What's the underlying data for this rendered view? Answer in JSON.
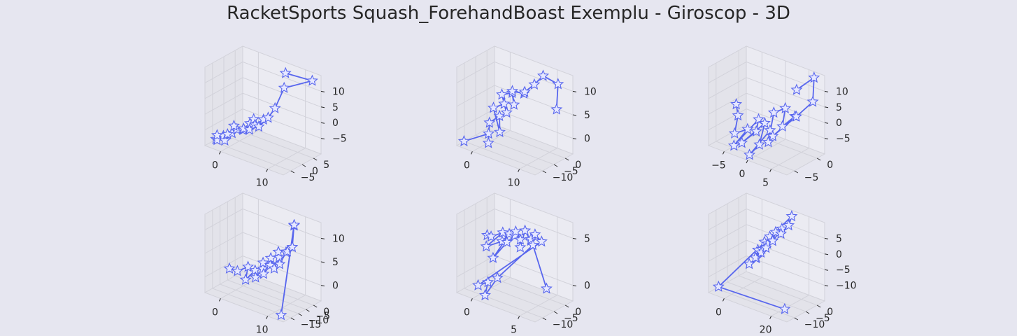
{
  "figure": {
    "title": "RacketSports Squash_ForehandBoast Exemplu - Giroscop - 3D"
  },
  "colors": {
    "background": "#e6e6f0",
    "pane_face": "#ebebf2",
    "pane_side": "#e3e3ea",
    "grid": "#d2d2da",
    "line": "#5866ee",
    "marker_fill": "#e6e8ff",
    "text": "#262626"
  },
  "chart_data": [
    {
      "type": "line3d",
      "marker": "star",
      "xticks": [
        "0",
        "10"
      ],
      "yticks": [
        "−5",
        "0",
        "5"
      ],
      "zticks": [
        "−5",
        "0",
        "5",
        "10"
      ],
      "x": [
        0.3,
        0.9,
        1.4,
        1.2,
        2.1,
        2.7,
        3.2,
        3.9,
        4.4,
        3.8,
        4.9,
        5.5,
        6.1,
        5.7,
        6.6,
        7.2,
        6.9,
        7.8,
        8.4,
        9.1,
        12.7,
        7.5
      ],
      "y": [
        -1.5,
        -2.0,
        -1.2,
        -2.4,
        -1.8,
        -0.9,
        -2.6,
        -1.4,
        -0.6,
        -1.9,
        -1.1,
        -0.4,
        -1.3,
        0.2,
        -0.7,
        0.5,
        -0.2,
        0.8,
        1.6,
        2.8,
        4.6,
        5.2
      ],
      "z": [
        -6.2,
        -5.8,
        -5.0,
        -4.2,
        -5.4,
        -3.8,
        -2.8,
        -1.9,
        -2.3,
        -0.8,
        -1.4,
        -0.2,
        -0.9,
        0.6,
        0.2,
        1.1,
        -0.4,
        1.7,
        3.9,
        8.6,
        11.2,
        10.0
      ]
    },
    {
      "type": "line3d",
      "marker": "star",
      "xticks": [
        "0",
        "10"
      ],
      "yticks": [
        "−10",
        "−5",
        "0"
      ],
      "zticks": [
        "0",
        "5",
        "10"
      ],
      "x": [
        0.0,
        4.2,
        5.3,
        3.6,
        4.9,
        6.1,
        3.2,
        5.0,
        6.6,
        4.1,
        5.6,
        7.2,
        6.0,
        7.4,
        8.3,
        9.0,
        10.2,
        14.6,
        12.5
      ],
      "y": [
        -6.5,
        -5.2,
        -6.8,
        -4.1,
        -3.0,
        -4.6,
        -2.4,
        -1.8,
        -3.3,
        -1.2,
        -0.3,
        -2.0,
        -0.8,
        0.6,
        -0.4,
        1.4,
        2.3,
        0.5,
        3.0
      ],
      "z": [
        -2.5,
        0.4,
        -0.6,
        2.2,
        3.8,
        1.3,
        4.7,
        6.1,
        5.4,
        7.6,
        8.2,
        6.9,
        9.0,
        8.4,
        9.6,
        10.8,
        12.9,
        13.6,
        5.8
      ]
    },
    {
      "type": "line3d",
      "marker": "star",
      "xticks": [
        "−5",
        "0",
        "5"
      ],
      "yticks": [
        "−5",
        "0"
      ],
      "zticks": [
        "−5",
        "0",
        "5",
        "10"
      ],
      "x": [
        -6.2,
        -4.8,
        -3.5,
        -2.1,
        -2.7,
        -0.8,
        0.4,
        -1.5,
        1.2,
        2.3,
        0.9,
        2.8,
        3.7,
        1.8,
        3.2,
        4.5,
        5.6,
        4.2,
        6.8,
        8.1,
        7.2,
        5.0
      ],
      "y": [
        0.6,
        -0.4,
        -2.3,
        -1.1,
        -3.2,
        -0.2,
        -1.8,
        -2.8,
        -0.9,
        -3.0,
        -3.6,
        -1.4,
        -2.6,
        0.3,
        1.2,
        -0.6,
        0.8,
        -2.2,
        -0.1,
        1.9,
        3.0,
        1.7
      ],
      "z": [
        1.4,
        0.2,
        -1.9,
        -1.2,
        -3.6,
        0.8,
        -0.3,
        -2.8,
        1.2,
        -1.6,
        -3.9,
        0.6,
        -0.8,
        2.9,
        3.8,
        1.6,
        3.3,
        0.4,
        4.2,
        6.6,
        10.6,
        8.0
      ]
    },
    {
      "type": "line3d",
      "marker": "star",
      "xticks": [
        "0",
        "10"
      ],
      "yticks": [
        "−15",
        "−10",
        "−5",
        "0"
      ],
      "zticks": [
        "0",
        "5",
        "10"
      ],
      "x": [
        -0.6,
        2.2,
        3.9,
        5.0,
        6.4,
        7.3,
        8.2,
        7.4,
        8.9,
        9.8,
        9.1,
        10.6,
        11.0,
        10.2,
        11.6,
        12.1,
        12.9,
        13.4,
        12.6,
        18.2,
        14.5
      ],
      "y": [
        -4.0,
        -5.2,
        -3.1,
        -6.3,
        -4.2,
        -5.6,
        -3.7,
        -2.1,
        -4.6,
        -3.0,
        -1.4,
        -2.5,
        -0.8,
        0.3,
        -1.6,
        0.6,
        -0.2,
        1.3,
        3.6,
        -13.0,
        0.2
      ],
      "z": [
        -1.2,
        -0.5,
        0.6,
        -1.4,
        0.9,
        -0.2,
        1.8,
        2.6,
        1.0,
        3.1,
        4.2,
        2.4,
        4.9,
        5.7,
        3.6,
        6.2,
        6.9,
        7.8,
        12.4,
        -3.8,
        14.2
      ]
    },
    {
      "type": "line3d",
      "marker": "star",
      "xticks": [
        "0",
        "5"
      ],
      "yticks": [
        "−10",
        "−5",
        "0"
      ],
      "zticks": [
        "0",
        "5"
      ],
      "x": [
        -0.8,
        0.4,
        1.1,
        0.2,
        1.7,
        2.3,
        1.5,
        2.8,
        3.4,
        2.6,
        3.9,
        4.5,
        3.7,
        5.2,
        5.8,
        4.9,
        6.4,
        0.6,
        1.4,
        2.2,
        3.0,
        9.6,
        6.8
      ],
      "y": [
        -1.2,
        -2.5,
        -0.3,
        -3.6,
        -1.8,
        -0.8,
        -4.2,
        -2.6,
        -1.4,
        0.6,
        -0.7,
        -2.0,
        1.2,
        -0.2,
        -1.4,
        1.8,
        0.7,
        -7.0,
        -5.6,
        -8.2,
        -6.0,
        -8.8,
        1.4
      ],
      "z": [
        1.6,
        2.2,
        2.5,
        0.9,
        1.8,
        2.9,
        -0.2,
        2.3,
        3.2,
        3.0,
        2.6,
        2.0,
        3.4,
        2.8,
        3.6,
        3.1,
        2.9,
        -4.0,
        -3.6,
        -4.6,
        -2.2,
        6.2,
        -4.4
      ]
    },
    {
      "type": "line3d",
      "marker": "star",
      "xticks": [
        "0",
        "20"
      ],
      "yticks": [
        "−10",
        "−5",
        "0"
      ],
      "zticks": [
        "−10",
        "−5",
        "0",
        "5"
      ],
      "x": [
        4.2,
        5.6,
        3.9,
        6.8,
        7.4,
        5.9,
        8.1,
        9.0,
        7.5,
        9.6,
        10.4,
        8.8,
        11.6,
        10.9,
        12.3,
        13.8,
        12.4,
        -14.5,
        29.0
      ],
      "y": [
        -5.8,
        -4.2,
        -2.9,
        -5.1,
        -3.4,
        -1.8,
        -4.0,
        -2.4,
        -0.9,
        -3.2,
        -1.6,
        0.3,
        -2.1,
        1.2,
        0.2,
        1.9,
        3.6,
        -6.0,
        -7.2
      ],
      "z": [
        -3.6,
        -2.4,
        -0.9,
        -1.6,
        0.2,
        1.3,
        -0.4,
        1.6,
        2.7,
        0.9,
        2.4,
        3.7,
        2.8,
        4.6,
        3.9,
        5.8,
        7.4,
        -13.8,
        -12.0
      ]
    }
  ]
}
